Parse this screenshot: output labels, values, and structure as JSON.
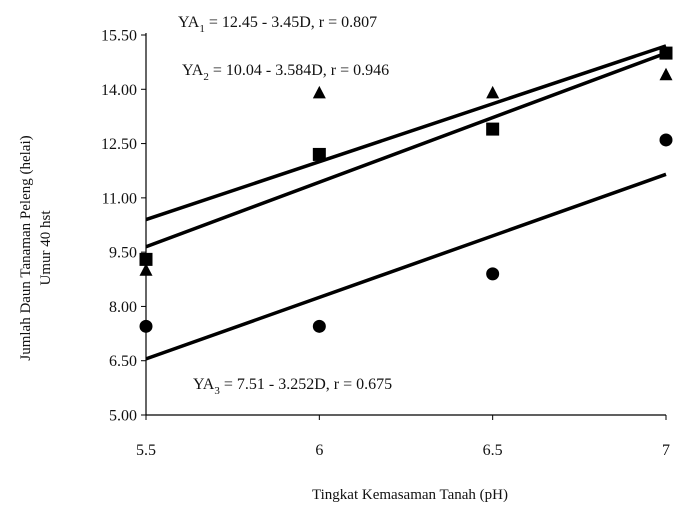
{
  "chart_data": {
    "type": "scatter",
    "xlabel": "Tingkat Kemasaman Tanah (pH)",
    "ylabel_lines": [
      "Jumlah Daun Tanaman Peleng (helai)",
      "Umur 40 hst"
    ],
    "xlim": [
      5.5,
      7
    ],
    "ylim": [
      5.0,
      15.5
    ],
    "x_ticks": [
      "5.5",
      "6",
      "6.5",
      "7"
    ],
    "y_ticks": [
      "5.00",
      "6.50",
      "8.00",
      "9.50",
      "11.00",
      "12.50",
      "14.00",
      "15.50"
    ],
    "grid": false,
    "series": [
      {
        "marker": "triangle",
        "x": [
          5.5,
          6,
          6.5,
          7
        ],
        "y": [
          9.0,
          13.9,
          13.9,
          14.4
        ],
        "fit": {
          "x": [
            5.5,
            7
          ],
          "y": [
            10.4,
            15.2
          ]
        },
        "equation": {
          "prefix": "YA",
          "sub": "1",
          "text": " = 12.45 - 3.45D, r = 0.807"
        }
      },
      {
        "marker": "square",
        "x": [
          5.5,
          6,
          6.5,
          7
        ],
        "y": [
          9.3,
          12.2,
          12.9,
          15.0
        ],
        "fit": {
          "x": [
            5.5,
            7
          ],
          "y": [
            9.65,
            15.0
          ]
        },
        "equation": {
          "prefix": "YA",
          "sub": "2",
          "text": " = 10.04 - 3.584D, r = 0.946"
        }
      },
      {
        "marker": "circle",
        "x": [
          5.5,
          6,
          6.5,
          7
        ],
        "y": [
          7.45,
          7.45,
          8.9,
          12.6
        ],
        "fit": {
          "x": [
            5.5,
            7
          ],
          "y": [
            6.55,
            11.65
          ]
        },
        "equation": {
          "prefix": "YA",
          "sub": "3",
          "text": " = 7.51 - 3.252D, r = 0.675"
        }
      }
    ]
  }
}
